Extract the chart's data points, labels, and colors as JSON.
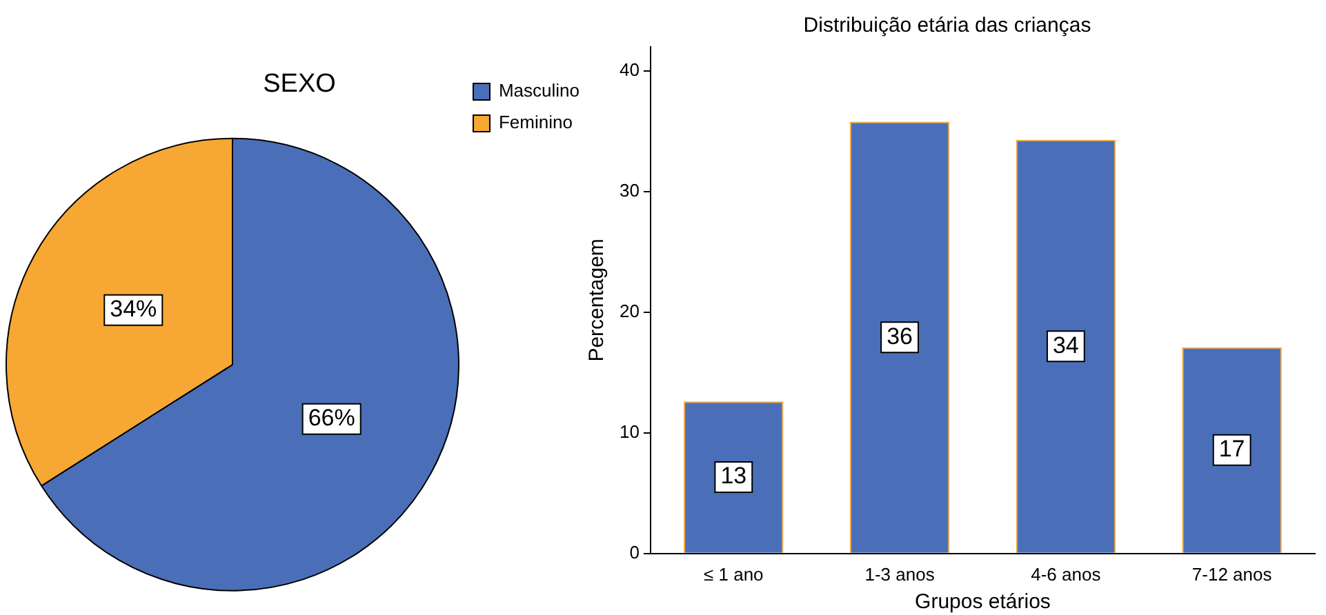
{
  "chart_data": [
    {
      "type": "pie",
      "title": "SEXO",
      "categories": [
        "Masculino",
        "Feminino"
      ],
      "values": [
        66,
        34
      ],
      "value_labels": [
        "66%",
        "34%"
      ],
      "colors": [
        "#4a6fb8",
        "#f7a734"
      ],
      "legend": "top right"
    },
    {
      "type": "bar",
      "title": "Distribuição etária das crianças",
      "xlabel": "Grupos etários",
      "ylabel": "Percentagem",
      "categories": [
        "≤ 1 ano",
        "1-3 anos",
        "4-6 anos",
        "7-12 anos"
      ],
      "values": [
        12.6,
        35.8,
        34.3,
        17.1
      ],
      "value_labels": [
        "13",
        "36",
        "34",
        "17"
      ],
      "color": "#4a6fb8",
      "ylim": [
        0,
        42
      ],
      "yticks": [
        0,
        10,
        20,
        30,
        40
      ],
      "grid": false,
      "legend": false
    }
  ]
}
